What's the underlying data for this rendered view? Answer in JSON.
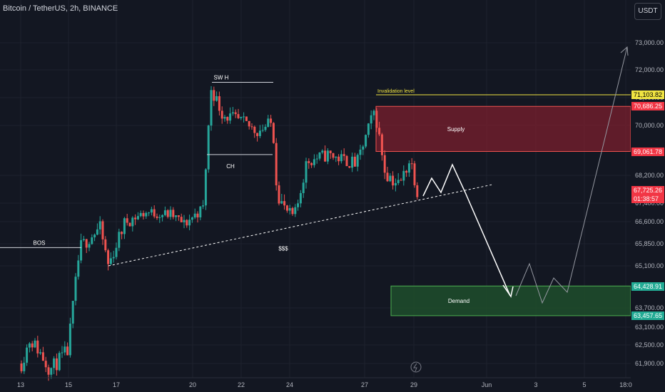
{
  "header": {
    "symbol": "Bitcoin / TetherUS, 2h, BINANCE",
    "currency": "USDT"
  },
  "colors": {
    "bg": "#131722",
    "up": "#26a69a",
    "down": "#ef5350",
    "axis_text": "#b2b5be",
    "invalidation": "#f0e442",
    "supply": "#7b1f2e",
    "demand": "#1e4d2b"
  },
  "chart_data": {
    "type": "candlestick",
    "ylim": [
      61500,
      74000
    ],
    "y_ticks": [
      "73,000.00",
      "72,000.00",
      "71,000.00",
      "70,000.00",
      "68,200.00",
      "67,400.00",
      "66,600.00",
      "65,850.00",
      "65,100.00",
      "63,700.00",
      "63,100.00",
      "62,500.00",
      "61,900.00"
    ],
    "x_ticks": [
      "13",
      "15",
      "17",
      "20",
      "22",
      "24",
      "27",
      "29",
      "Jun",
      "3",
      "5",
      "18:0"
    ],
    "price_labels": [
      {
        "text": "71,103.82",
        "kind": "invalidation"
      },
      {
        "text": "70,686.25",
        "kind": "supply"
      },
      {
        "text": "69,061.78",
        "kind": "supply"
      },
      {
        "text": "67,725.26",
        "kind": "last"
      },
      {
        "text": "01:38:57",
        "kind": "last"
      },
      {
        "text": "64,428.91",
        "kind": "demand"
      },
      {
        "text": "63,457.65",
        "kind": "demand"
      }
    ],
    "zones": [
      {
        "label": "Supply",
        "top": 70686.25,
        "bottom": 69061.78
      },
      {
        "label": "Demand",
        "top": 64428.91,
        "bottom": 63457.65
      }
    ],
    "levels": [
      {
        "label": "Invalidation level",
        "price": 71103.82
      }
    ],
    "annotations": [
      "BOS",
      "SW H",
      "CH",
      "$$$"
    ],
    "key_prices": {
      "start_low": 61600,
      "bos_level": 65720,
      "swing_high": 71550,
      "ch_level": 68950,
      "sss_low": 66400,
      "last": 67725.26,
      "projection_high": 73250
    },
    "candles": []
  }
}
